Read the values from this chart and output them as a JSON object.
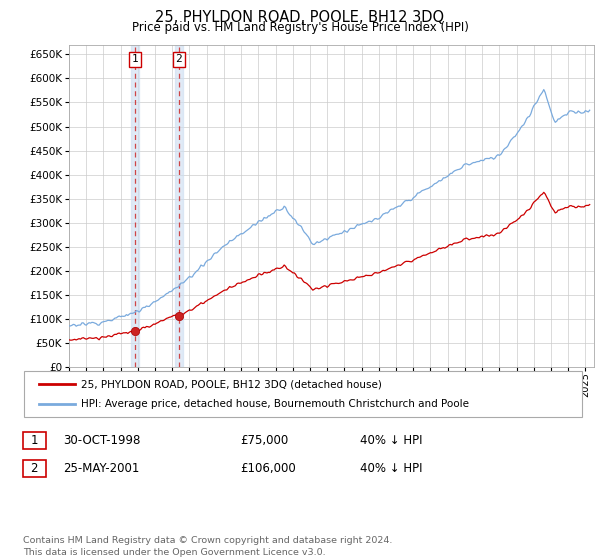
{
  "title": "25, PHYLDON ROAD, POOLE, BH12 3DQ",
  "subtitle": "Price paid vs. HM Land Registry's House Price Index (HPI)",
  "ylim": [
    0,
    670000
  ],
  "yticks": [
    0,
    50000,
    100000,
    150000,
    200000,
    250000,
    300000,
    350000,
    400000,
    450000,
    500000,
    550000,
    600000,
    650000
  ],
  "xlim_start": 1995.0,
  "xlim_end": 2025.5,
  "hpi_color": "#7aaadd",
  "price_color": "#cc0000",
  "vline_color": "#cc3333",
  "shade_color": "#ccddf0",
  "transactions": [
    {
      "date_num": 1998.83,
      "price": 75000,
      "label": "1"
    },
    {
      "date_num": 2001.39,
      "price": 106000,
      "label": "2"
    }
  ],
  "legend_entries": [
    {
      "label": "25, PHYLDON ROAD, POOLE, BH12 3DQ (detached house)",
      "color": "#cc0000"
    },
    {
      "label": "HPI: Average price, detached house, Bournemouth Christchurch and Poole",
      "color": "#7aaadd"
    }
  ],
  "footer": "Contains HM Land Registry data © Crown copyright and database right 2024.\nThis data is licensed under the Open Government Licence v3.0.",
  "table_rows": [
    {
      "num": "1",
      "date": "30-OCT-1998",
      "price": "£75,000",
      "pct": "40% ↓ HPI"
    },
    {
      "num": "2",
      "date": "25-MAY-2001",
      "price": "£106,000",
      "pct": "40% ↓ HPI"
    }
  ],
  "background_color": "#ffffff",
  "grid_color": "#cccccc"
}
